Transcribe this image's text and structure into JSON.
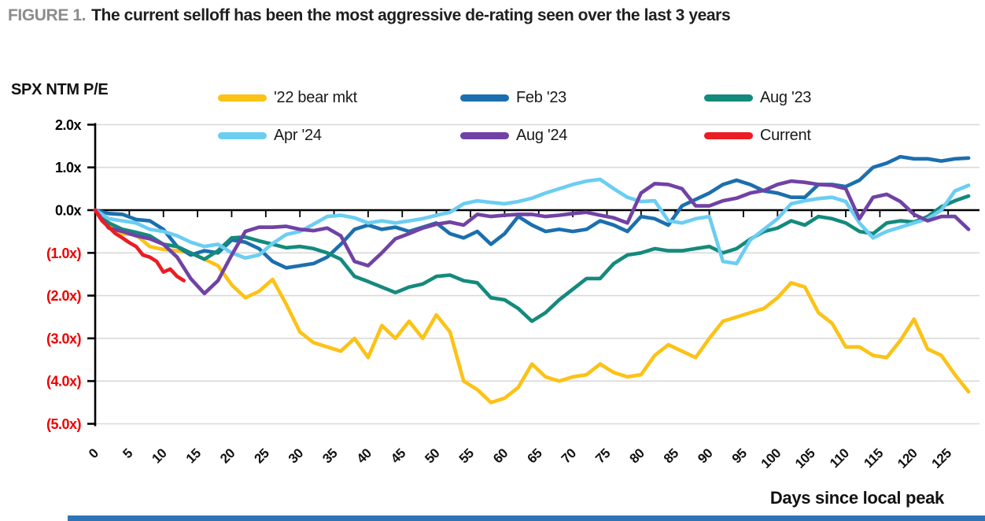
{
  "header": {
    "figure_label": "FIGURE 1.",
    "title": "The current selloff has been the most aggressive de-rating seen over the last 3 years"
  },
  "chart": {
    "y_axis_title": "SPX NTM P/E",
    "x_axis_title": "Days since local peak"
  },
  "colors": {
    "grid": "#d9d9d9",
    "axis": "#000000",
    "tick_label_positive": "#000000",
    "tick_label_negative": "#ee0000",
    "figure_label": "#8c8c8c",
    "title_text": "#1f1f1f",
    "footer_bar": "#2e74b5"
  },
  "chart_data": {
    "type": "line",
    "title": "The current selloff has been the most aggressive de-rating seen over the last 3 years",
    "xlabel": "Days since local peak",
    "ylabel": "SPX NTM P/E",
    "ylim": [
      -5.0,
      2.0
    ],
    "xlim": [
      0,
      130
    ],
    "grid": true,
    "legend_position": "top",
    "x_ticks": [
      0,
      5,
      10,
      15,
      20,
      25,
      30,
      35,
      40,
      45,
      50,
      55,
      60,
      65,
      70,
      75,
      80,
      85,
      90,
      95,
      100,
      105,
      110,
      115,
      120,
      125
    ],
    "y_ticks": [
      {
        "value": 2,
        "label": "2.0x"
      },
      {
        "value": 1,
        "label": "1.0x"
      },
      {
        "value": 0,
        "label": "0.0x"
      },
      {
        "value": -1,
        "label": "(1.0x)"
      },
      {
        "value": -2,
        "label": "(2.0x)"
      },
      {
        "value": -3,
        "label": "(3.0x)"
      },
      {
        "value": -4,
        "label": "(4.0x)"
      },
      {
        "value": -5,
        "label": "(5.0x)"
      }
    ],
    "x": [
      0,
      2,
      4,
      6,
      8,
      10,
      12,
      14,
      16,
      18,
      20,
      22,
      24,
      26,
      28,
      30,
      32,
      34,
      36,
      38,
      40,
      42,
      44,
      46,
      48,
      50,
      52,
      54,
      56,
      58,
      60,
      62,
      64,
      66,
      68,
      70,
      72,
      74,
      76,
      78,
      80,
      82,
      84,
      86,
      88,
      90,
      92,
      94,
      96,
      98,
      100,
      102,
      104,
      106,
      108,
      110,
      112,
      114,
      116,
      118,
      120,
      122,
      124,
      126,
      128
    ],
    "series": [
      {
        "name": "'22 bear mkt",
        "color": "#fcc216",
        "values": [
          0,
          -0.36,
          -0.55,
          -0.58,
          -0.85,
          -0.92,
          -0.95,
          -1.0,
          -1.15,
          -1.3,
          -1.75,
          -2.05,
          -1.9,
          -1.62,
          -2.2,
          -2.85,
          -3.1,
          -3.2,
          -3.3,
          -3.0,
          -3.45,
          -2.7,
          -3.0,
          -2.6,
          -3.0,
          -2.45,
          -2.85,
          -4.0,
          -4.2,
          -4.5,
          -4.4,
          -4.15,
          -3.6,
          -3.9,
          -4.0,
          -3.9,
          -3.85,
          -3.6,
          -3.8,
          -3.9,
          -3.85,
          -3.4,
          -3.15,
          -3.3,
          -3.45,
          -3.0,
          -2.6,
          -2.5,
          -2.4,
          -2.3,
          -2.05,
          -1.7,
          -1.8,
          -2.4,
          -2.65,
          -3.2,
          -3.2,
          -3.4,
          -3.45,
          -3.05,
          -2.55,
          -3.25,
          -3.4,
          -3.85,
          -4.25
        ]
      },
      {
        "name": "Feb '23",
        "color": "#1b6fae",
        "values": [
          0,
          -0.08,
          -0.1,
          -0.22,
          -0.25,
          -0.45,
          -0.85,
          -1.05,
          -0.95,
          -1.0,
          -0.7,
          -0.75,
          -0.9,
          -1.2,
          -1.35,
          -1.3,
          -1.25,
          -1.1,
          -0.8,
          -0.45,
          -0.35,
          -0.45,
          -0.4,
          -0.5,
          -0.4,
          -0.3,
          -0.55,
          -0.65,
          -0.5,
          -0.8,
          -0.55,
          -0.15,
          -0.35,
          -0.5,
          -0.45,
          -0.5,
          -0.45,
          -0.25,
          -0.35,
          -0.5,
          -0.15,
          -0.2,
          -0.35,
          0.1,
          0.25,
          0.4,
          0.6,
          0.7,
          0.6,
          0.45,
          0.4,
          0.3,
          0.3,
          0.6,
          0.6,
          0.55,
          0.7,
          1.0,
          1.1,
          1.25,
          1.2,
          1.2,
          1.15,
          1.2,
          1.22
        ]
      },
      {
        "name": "Aug '23",
        "color": "#148a7d",
        "values": [
          0,
          -0.3,
          -0.45,
          -0.52,
          -0.6,
          -0.8,
          -0.85,
          -1.0,
          -1.15,
          -0.95,
          -0.65,
          -0.63,
          -0.72,
          -0.8,
          -0.88,
          -0.85,
          -0.9,
          -1.0,
          -1.15,
          -1.55,
          -1.67,
          -1.8,
          -1.93,
          -1.8,
          -1.73,
          -1.55,
          -1.52,
          -1.65,
          -1.7,
          -2.05,
          -2.1,
          -2.3,
          -2.6,
          -2.4,
          -2.1,
          -1.85,
          -1.6,
          -1.6,
          -1.25,
          -1.05,
          -1.0,
          -0.9,
          -0.95,
          -0.95,
          -0.9,
          -0.85,
          -1.0,
          -0.9,
          -0.68,
          -0.5,
          -0.42,
          -0.25,
          -0.35,
          -0.15,
          -0.2,
          -0.3,
          -0.5,
          -0.55,
          -0.3,
          -0.25,
          -0.28,
          -0.15,
          0.08,
          0.22,
          0.33
        ]
      },
      {
        "name": "Apr '24",
        "color": "#6bcdf2",
        "values": [
          0,
          -0.2,
          -0.25,
          -0.3,
          -0.45,
          -0.5,
          -0.6,
          -0.75,
          -0.85,
          -0.8,
          -1.0,
          -1.12,
          -1.05,
          -0.78,
          -0.57,
          -0.5,
          -0.33,
          -0.15,
          -0.12,
          -0.18,
          -0.3,
          -0.25,
          -0.3,
          -0.25,
          -0.2,
          -0.12,
          -0.05,
          0.15,
          0.22,
          0.18,
          0.15,
          0.2,
          0.28,
          0.4,
          0.5,
          0.6,
          0.68,
          0.72,
          0.5,
          0.3,
          0.2,
          0.22,
          -0.25,
          -0.3,
          -0.2,
          -0.15,
          -1.2,
          -1.25,
          -0.7,
          -0.45,
          -0.2,
          0.15,
          0.22,
          0.27,
          0.3,
          0.2,
          -0.3,
          -0.65,
          -0.5,
          -0.4,
          -0.3,
          -0.2,
          0.0,
          0.45,
          0.58
        ]
      },
      {
        "name": "Aug '24",
        "color": "#7142a5",
        "values": [
          0,
          -0.42,
          -0.5,
          -0.6,
          -0.67,
          -0.8,
          -1.1,
          -1.6,
          -1.95,
          -1.65,
          -1.05,
          -0.5,
          -0.4,
          -0.4,
          -0.38,
          -0.45,
          -0.48,
          -0.42,
          -0.6,
          -1.2,
          -1.3,
          -1.0,
          -0.67,
          -0.55,
          -0.42,
          -0.33,
          -0.28,
          -0.35,
          -0.1,
          -0.15,
          -0.12,
          -0.1,
          -0.1,
          -0.15,
          -0.12,
          -0.08,
          -0.05,
          -0.12,
          -0.18,
          -0.3,
          0.4,
          0.62,
          0.6,
          0.5,
          0.1,
          0.1,
          0.22,
          0.28,
          0.4,
          0.46,
          0.6,
          0.68,
          0.65,
          0.6,
          0.58,
          0.5,
          -0.2,
          0.3,
          0.37,
          0.2,
          -0.1,
          -0.25,
          -0.15,
          -0.15,
          -0.45
        ]
      },
      {
        "name": "Current",
        "color": "#ec1c24",
        "days": [
          0,
          1,
          2,
          3,
          4,
          5,
          6,
          7,
          8,
          9,
          10,
          11,
          12,
          13
        ],
        "values": [
          0,
          -0.25,
          -0.4,
          -0.55,
          -0.65,
          -0.76,
          -0.85,
          -1.05,
          -1.1,
          -1.2,
          -1.45,
          -1.38,
          -1.55,
          -1.65
        ]
      }
    ]
  }
}
